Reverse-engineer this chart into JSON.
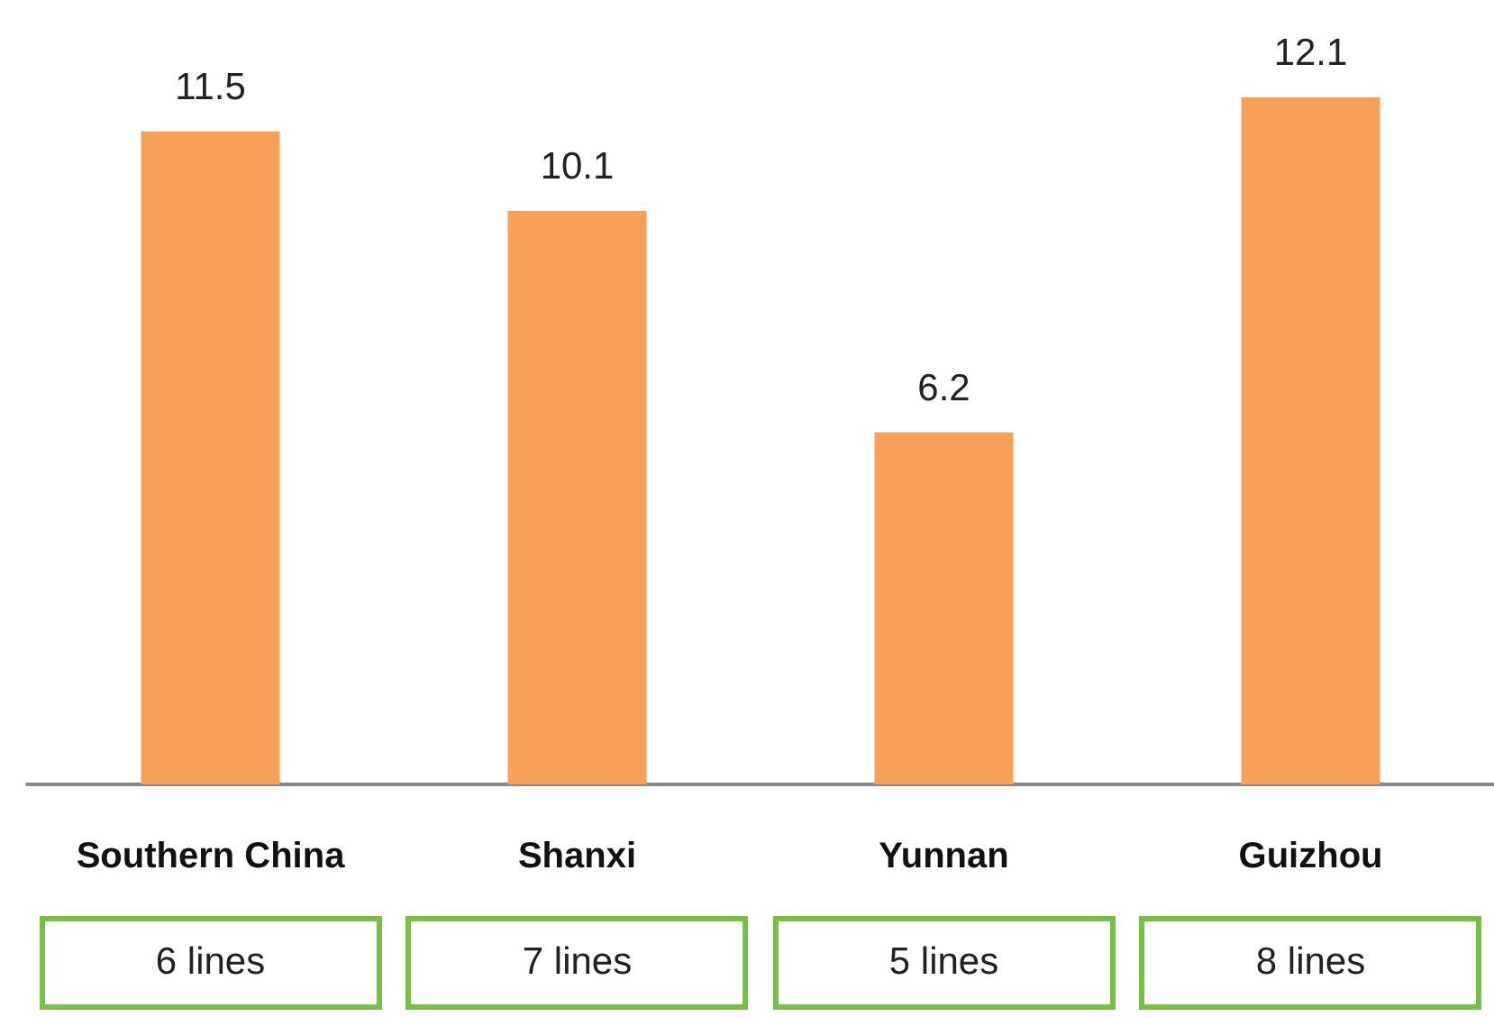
{
  "chart_data": {
    "type": "bar",
    "categories": [
      "Southern China",
      "Shanxi",
      "Yunnan",
      "Guizhou"
    ],
    "values": [
      11.5,
      10.1,
      6.2,
      12.1
    ],
    "color": "#f6a05a",
    "data_labels": true,
    "annotations": [
      "6 lines",
      "7 lines",
      "5 lines",
      "8 lines"
    ]
  }
}
